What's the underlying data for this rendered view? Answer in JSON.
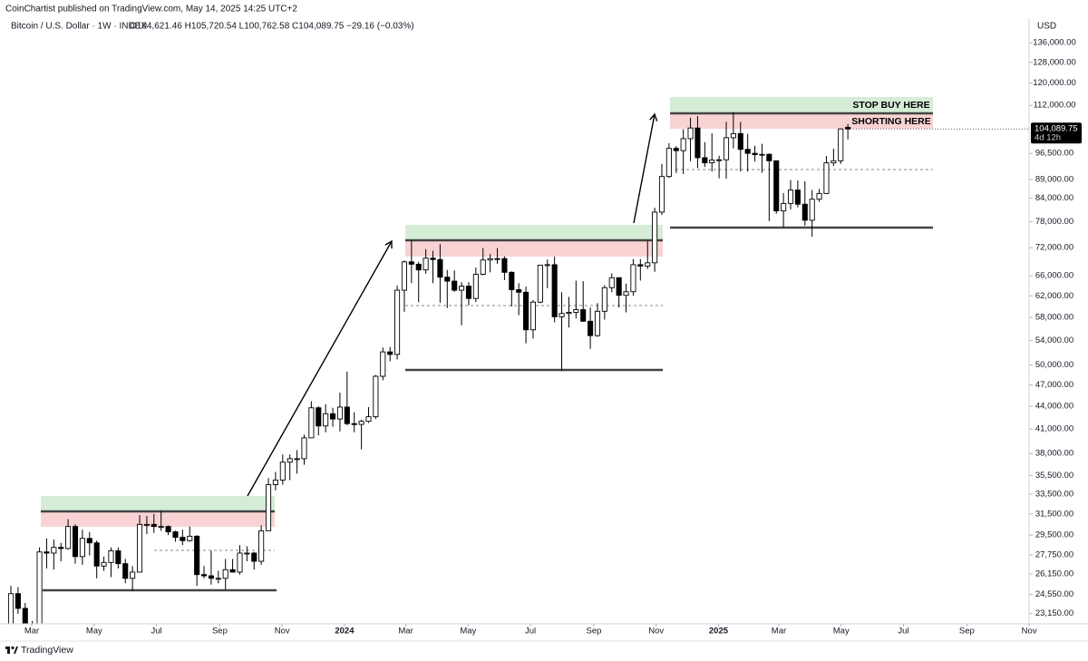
{
  "header": {
    "published": "CoinChartist published on TradingView.com, May 14, 2025 14:25 UTC+2",
    "symbol": "Bitcoin / U.S. Dollar · 1W · INDEX",
    "ohlc": "O104,621.46 H105,720.54 L100,762.58 C104,089.75 −29.16 (−0.03%)",
    "brand": "TradingView"
  },
  "chart_data": {
    "type": "candlestick",
    "currency": "USD",
    "log_scale": true,
    "up_color": "#ffffff",
    "down_color": "#000000",
    "wick_color": "#000000",
    "open": [
      21800,
      24600,
      23500,
      22300,
      20600,
      28000,
      27900,
      28400,
      28300,
      30300,
      27600,
      29200,
      28800,
      26800,
      27100,
      28100,
      27000,
      25800,
      26300,
      30500,
      30500,
      30300,
      30300,
      29800,
      29300,
      29000,
      29400,
      26100,
      26000,
      25800,
      25800,
      26500,
      26300,
      27900,
      27900,
      27200,
      29900,
      34500,
      35000,
      37000,
      37400,
      37400,
      39900,
      43800,
      41400,
      43000,
      42300,
      43900,
      41700,
      41600,
      42000,
      42600,
      48300,
      52100,
      51700,
      63100,
      68900,
      68400,
      67200,
      69700,
      69400,
      65700,
      64900,
      63100,
      63900,
      61500,
      66300,
      69300,
      69600,
      69600,
      66700,
      63200,
      62700,
      55800,
      60800,
      68200,
      68300,
      58100,
      58700,
      58900,
      59400,
      57300,
      54800,
      59100,
      63600,
      65600,
      62100,
      62800,
      68300,
      68000,
      68700,
      80400,
      89800,
      98000,
      97300,
      101000,
      104400,
      95200,
      93700,
      94500,
      94600,
      101300,
      102600,
      97700,
      96500,
      96100,
      96200,
      94300,
      80700,
      82600,
      86100,
      82400,
      78400,
      83700,
      85200,
      93700,
      94300,
      104621.46
    ],
    "high": [
      25200,
      25100,
      23900,
      22600,
      28400,
      29200,
      29100,
      28800,
      31000,
      30500,
      30000,
      29800,
      29000,
      27600,
      28400,
      28400,
      27400,
      26800,
      31400,
      31300,
      31500,
      31800,
      30400,
      29900,
      30000,
      30300,
      29500,
      26800,
      28100,
      26400,
      27400,
      27400,
      28600,
      28500,
      28000,
      30400,
      35200,
      35900,
      37900,
      37900,
      38400,
      40300,
      44700,
      44000,
      44300,
      43800,
      45900,
      49000,
      43200,
      42200,
      43900,
      48500,
      52800,
      52900,
      64000,
      69200,
      73800,
      68900,
      71700,
      71300,
      72800,
      67200,
      67100,
      64700,
      64700,
      67700,
      71900,
      70600,
      71900,
      70100,
      66900,
      64500,
      63800,
      61200,
      68300,
      69400,
      70000,
      62700,
      61800,
      65000,
      64900,
      59800,
      60600,
      64100,
      66500,
      65600,
      64400,
      69500,
      69500,
      73600,
      81500,
      93400,
      99600,
      98700,
      104000,
      107800,
      108300,
      99900,
      102700,
      95800,
      106400,
      109600,
      106400,
      102500,
      98800,
      99400,
      96500,
      94400,
      85300,
      88800,
      88700,
      88500,
      86100,
      86400,
      95700,
      97900,
      104300,
      105720.54
    ],
    "low": [
      21500,
      23100,
      21900,
      19600,
      20300,
      26600,
      26500,
      27200,
      28200,
      27000,
      26900,
      27700,
      25800,
      26400,
      25900,
      26600,
      25400,
      24800,
      26300,
      29600,
      29700,
      29900,
      29500,
      28900,
      28600,
      28900,
      25200,
      25800,
      25300,
      25400,
      24900,
      26300,
      26100,
      27200,
      26500,
      26900,
      29900,
      33900,
      34500,
      35000,
      35700,
      36700,
      39900,
      40200,
      40600,
      41300,
      40700,
      41500,
      40600,
      38500,
      41800,
      42300,
      47700,
      50600,
      50900,
      59000,
      64500,
      60800,
      66400,
      64500,
      60700,
      59700,
      62800,
      56600,
      60200,
      60800,
      66100,
      66700,
      68500,
      65100,
      60000,
      58400,
      53500,
      54300,
      60600,
      63500,
      57100,
      49100,
      56200,
      57800,
      57200,
      52600,
      54600,
      57600,
      62700,
      59800,
      58900,
      62000,
      65000,
      67400,
      66800,
      79700,
      89400,
      90800,
      90500,
      94200,
      92200,
      92500,
      91200,
      89300,
      89200,
      98000,
      91200,
      91200,
      94100,
      90900,
      78200,
      80000,
      76600,
      81100,
      81600,
      77100,
      74500,
      83000,
      85100,
      92800,
      93400,
      100762.58
    ],
    "close": [
      24600,
      23500,
      22300,
      20600,
      28000,
      27900,
      28400,
      28300,
      30300,
      27600,
      29200,
      28800,
      26800,
      27100,
      28100,
      27000,
      25800,
      26300,
      30500,
      30500,
      30300,
      30300,
      29800,
      29300,
      29000,
      29400,
      26100,
      26000,
      25800,
      25800,
      26500,
      26300,
      27900,
      27900,
      27200,
      29900,
      34500,
      35000,
      37000,
      37400,
      37400,
      39900,
      43800,
      41400,
      43000,
      42300,
      43900,
      41700,
      41600,
      42000,
      42600,
      48300,
      52100,
      51700,
      63100,
      68900,
      68400,
      67200,
      69700,
      69400,
      65700,
      64900,
      63100,
      63900,
      61500,
      66300,
      69300,
      69600,
      69600,
      66700,
      63200,
      62700,
      55800,
      60800,
      68200,
      68300,
      58100,
      58700,
      58900,
      59400,
      57300,
      54800,
      59100,
      63600,
      65600,
      62100,
      62800,
      68300,
      68000,
      68700,
      80400,
      89800,
      98000,
      97300,
      101000,
      104400,
      95200,
      93700,
      94500,
      94600,
      101300,
      102600,
      97700,
      96500,
      96100,
      96200,
      94300,
      80700,
      82600,
      86100,
      82400,
      78400,
      83700,
      85200,
      93700,
      94300,
      104100,
      104089.75
    ],
    "last_price": {
      "value": 104089.75,
      "label": "104,089.75",
      "countdown": "4d 12h"
    },
    "ylim": [
      22400,
      146000
    ],
    "yticks": [
      {
        "value": 136000,
        "label": "136,000.00"
      },
      {
        "value": 128000,
        "label": "128,000.00"
      },
      {
        "value": 120000,
        "label": "120,000.00"
      },
      {
        "value": 112000,
        "label": "112,000.00"
      },
      {
        "value": 96500,
        "label": "96,500.00"
      },
      {
        "value": 89000,
        "label": "89,000.00"
      },
      {
        "value": 84000,
        "label": "84,000.00"
      },
      {
        "value": 78000,
        "label": "78,000.00"
      },
      {
        "value": 72000,
        "label": "72,000.00"
      },
      {
        "value": 66000,
        "label": "66,000.00"
      },
      {
        "value": 62000,
        "label": "62,000.00"
      },
      {
        "value": 58000,
        "label": "58,000.00"
      },
      {
        "value": 54000,
        "label": "54,000.00"
      },
      {
        "value": 50000,
        "label": "50,000.00"
      },
      {
        "value": 47000,
        "label": "47,000.00"
      },
      {
        "value": 44000,
        "label": "44,000.00"
      },
      {
        "value": 41000,
        "label": "41,000.00"
      },
      {
        "value": 38000,
        "label": "38,000.00"
      },
      {
        "value": 35500,
        "label": "35,500.00"
      },
      {
        "value": 33500,
        "label": "33,500.00"
      },
      {
        "value": 31500,
        "label": "31,500.00"
      },
      {
        "value": 29500,
        "label": "29,500.00"
      },
      {
        "value": 27750,
        "label": "27,750.00"
      },
      {
        "value": 26150,
        "label": "26,150.00"
      },
      {
        "value": 24550,
        "label": "24,550.00"
      },
      {
        "value": 23150,
        "label": "23,150.00"
      }
    ],
    "xticks": [
      {
        "value": "2023-03",
        "label": "Mar"
      },
      {
        "value": "2023-05",
        "label": "May"
      },
      {
        "value": "2023-07",
        "label": "Jul"
      },
      {
        "value": "2023-09",
        "label": "Sep"
      },
      {
        "value": "2023-11",
        "label": "Nov"
      },
      {
        "value": "2024-01",
        "label": "2024"
      },
      {
        "value": "2024-03",
        "label": "Mar"
      },
      {
        "value": "2024-05",
        "label": "May"
      },
      {
        "value": "2024-07",
        "label": "Jul"
      },
      {
        "value": "2024-09",
        "label": "Sep"
      },
      {
        "value": "2024-11",
        "label": "Nov"
      },
      {
        "value": "2025-01",
        "label": "2025"
      },
      {
        "value": "2025-03",
        "label": "Mar"
      },
      {
        "value": "2025-05",
        "label": "May"
      },
      {
        "value": "2025-07",
        "label": "Jul"
      },
      {
        "value": "2025-09",
        "label": "Sep"
      },
      {
        "value": "2025-11",
        "label": "Nov"
      }
    ],
    "annotations": [
      "STOP BUY HERE",
      "SHORTING HERE"
    ]
  }
}
